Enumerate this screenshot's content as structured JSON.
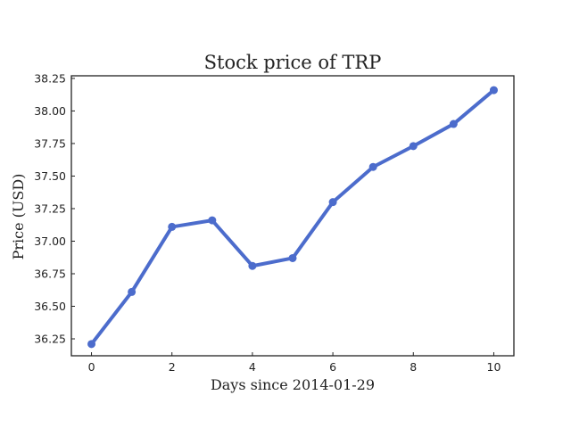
{
  "chart_data": {
    "type": "line",
    "title": "Stock price of TRP",
    "xlabel": "Days since 2014-01-29",
    "ylabel": "Price (USD)",
    "x": [
      0,
      1,
      2,
      3,
      4,
      5,
      6,
      7,
      8,
      9,
      10
    ],
    "series": [
      {
        "values": [
          36.21,
          36.61,
          37.11,
          37.16,
          36.81,
          36.87,
          37.3,
          37.57,
          37.73,
          37.9,
          38.16
        ]
      }
    ],
    "xlim": [
      -0.5,
      10.5
    ],
    "ylim": [
      36.12,
      38.27
    ],
    "xticks": [
      0,
      2,
      4,
      6,
      8,
      10
    ],
    "xtick_labels": [
      "0",
      "2",
      "4",
      "6",
      "8",
      "10"
    ],
    "yticks": [
      36.25,
      36.5,
      36.75,
      37.0,
      37.25,
      37.5,
      37.75,
      38.0,
      38.25
    ],
    "ytick_labels": [
      "36.25",
      "36.50",
      "36.75",
      "37.00",
      "37.25",
      "37.50",
      "37.75",
      "38.00",
      "38.25"
    ],
    "grid": false,
    "line_color": "#4c6ccc"
  }
}
